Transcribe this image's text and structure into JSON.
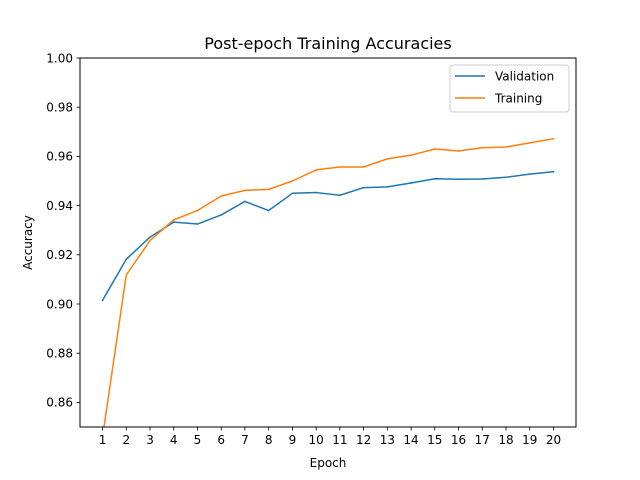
{
  "chart_data": {
    "type": "line",
    "title": "Post-epoch Training Accuracies",
    "xlabel": "Epoch",
    "ylabel": "Accuracy",
    "x": [
      1,
      2,
      3,
      4,
      5,
      6,
      7,
      8,
      9,
      10,
      11,
      12,
      13,
      14,
      15,
      16,
      17,
      18,
      19,
      20
    ],
    "xticks": [
      "1",
      "2",
      "3",
      "4",
      "5",
      "6",
      "7",
      "8",
      "9",
      "10",
      "11",
      "12",
      "13",
      "14",
      "15",
      "16",
      "17",
      "18",
      "19",
      "20"
    ],
    "yticks": [
      "0.86",
      "0.88",
      "0.90",
      "0.92",
      "0.94",
      "0.96",
      "0.98",
      "1.00"
    ],
    "ylim": [
      0.85,
      1.0
    ],
    "xlim": [
      0.05,
      20.95
    ],
    "grid": false,
    "legend_position": "top-right",
    "series": [
      {
        "name": "Validation",
        "color": "#1f77b4",
        "values": [
          0.9015,
          0.9182,
          0.9272,
          0.9333,
          0.9325,
          0.9362,
          0.9417,
          0.938,
          0.945,
          0.9453,
          0.9442,
          0.9473,
          0.9476,
          0.9492,
          0.9509,
          0.9507,
          0.9508,
          0.9515,
          0.9528,
          0.9538
        ]
      },
      {
        "name": "Training",
        "color": "#ff7f0e",
        "values": [
          0.846,
          0.9118,
          0.9258,
          0.9342,
          0.938,
          0.9439,
          0.9462,
          0.9466,
          0.95,
          0.9545,
          0.9557,
          0.9557,
          0.959,
          0.9605,
          0.963,
          0.9622,
          0.9635,
          0.9638,
          0.9655,
          0.9672
        ]
      }
    ]
  }
}
